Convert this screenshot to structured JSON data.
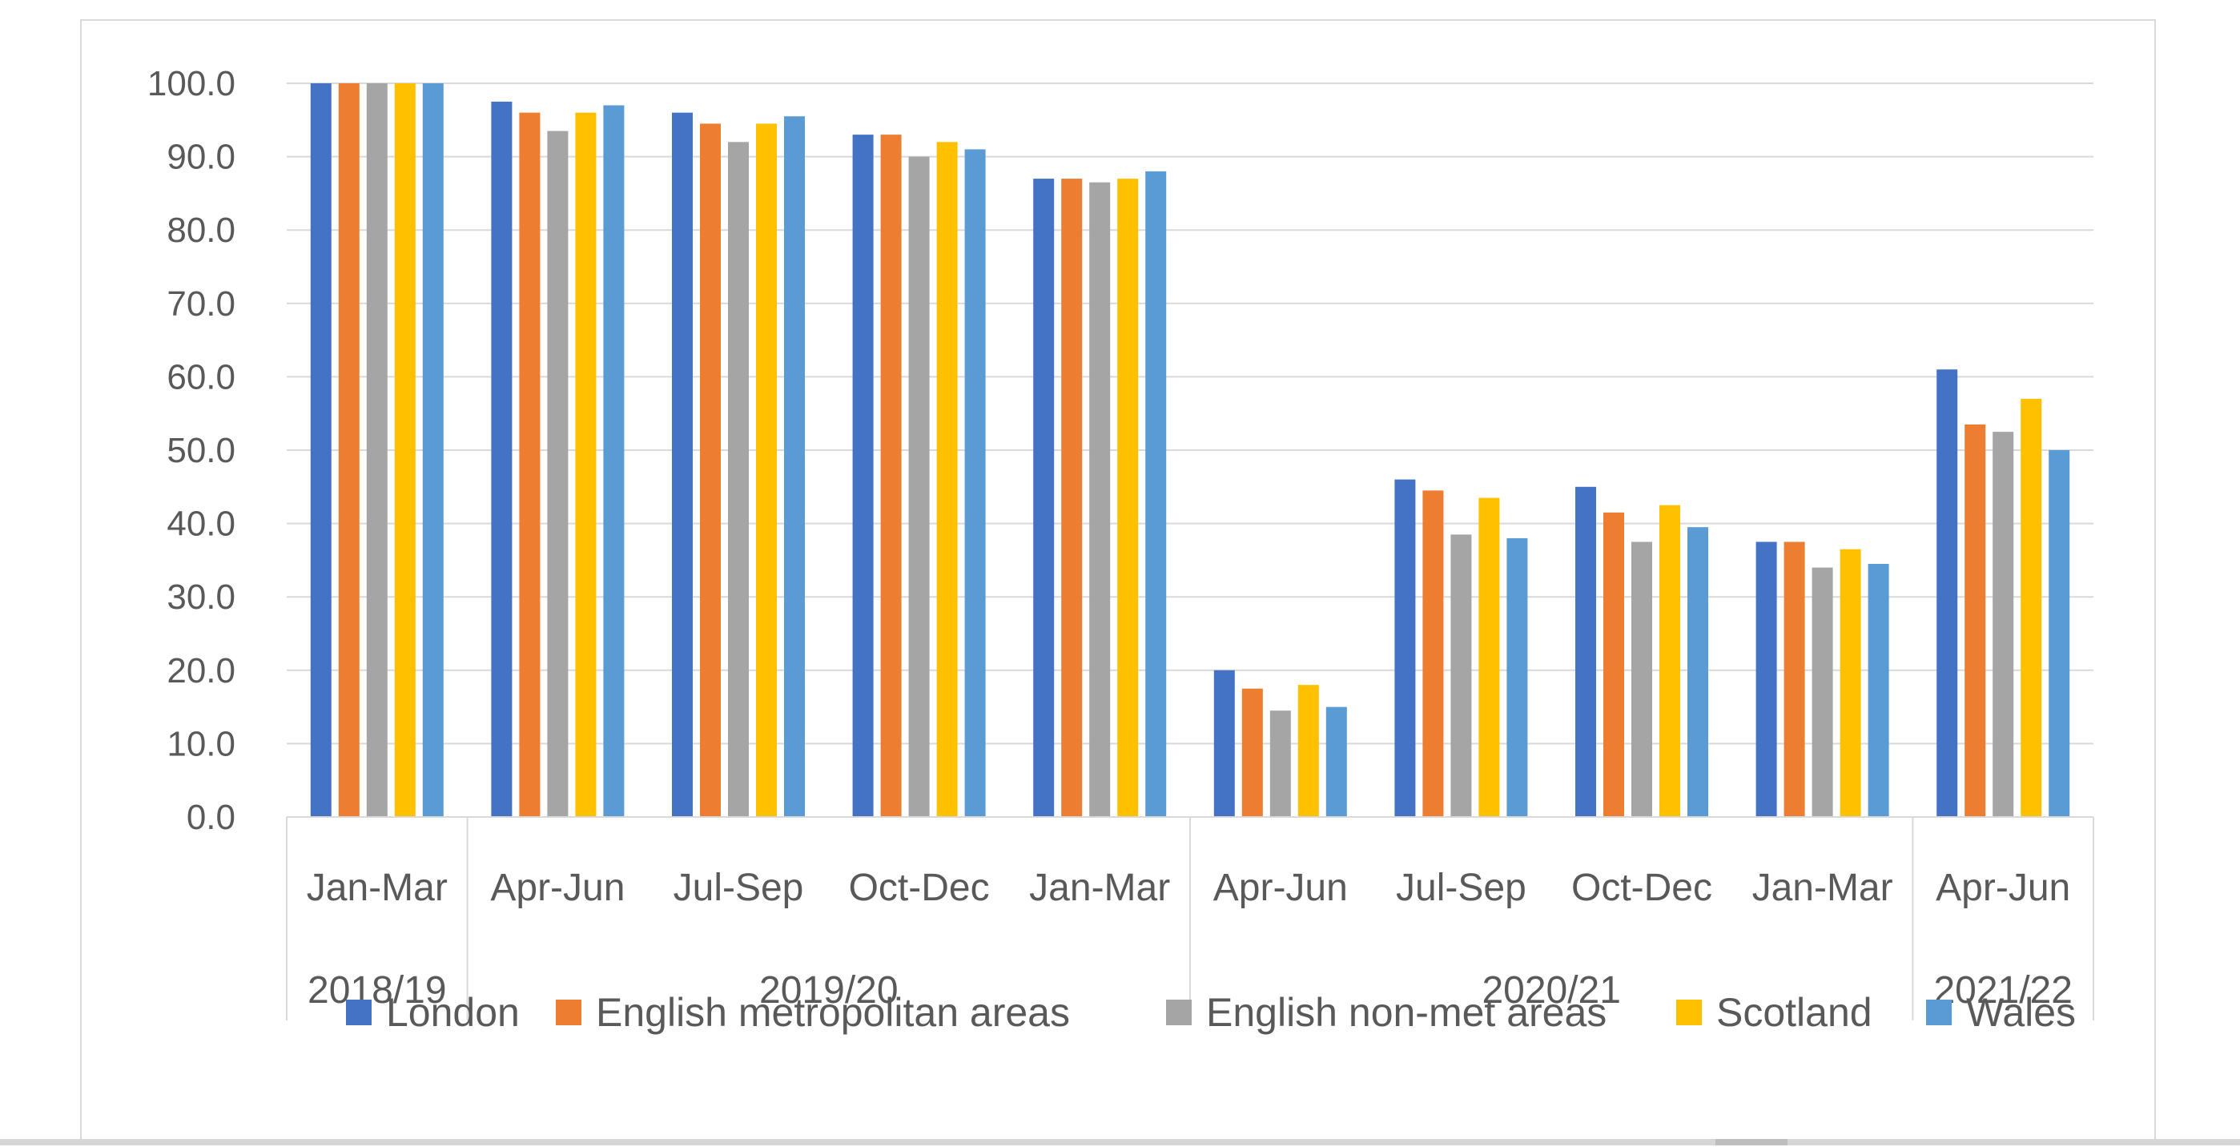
{
  "chart_data": {
    "type": "bar",
    "title": "",
    "xlabel": "",
    "ylabel": "",
    "ylim": [
      0,
      100
    ],
    "y_ticks": [
      "0.0",
      "10.0",
      "20.0",
      "30.0",
      "40.0",
      "50.0",
      "60.0",
      "70.0",
      "80.0",
      "90.0",
      "100.0"
    ],
    "categories": [
      "Jan-Mar",
      "Apr-Jun",
      "Jul-Sep",
      "Oct-Dec",
      "Jan-Mar",
      "Apr-Jun",
      "Jul-Sep",
      "Oct-Dec",
      "Jan-Mar",
      "Apr-Jun"
    ],
    "category_groups": [
      {
        "label": "2018/19",
        "count": 1
      },
      {
        "label": "2019/20",
        "count": 4
      },
      {
        "label": "2020/21",
        "count": 4
      },
      {
        "label": "2021/22",
        "count": 1
      }
    ],
    "series": [
      {
        "name": "London",
        "color": "#4472c4",
        "values": [
          100.0,
          97.5,
          96.0,
          93.0,
          87.0,
          20.0,
          46.0,
          45.0,
          37.5,
          61.0
        ]
      },
      {
        "name": "English metropolitan areas",
        "color": "#ed7d31",
        "values": [
          100.0,
          96.0,
          94.5,
          93.0,
          87.0,
          17.5,
          44.5,
          41.5,
          37.5,
          53.5
        ]
      },
      {
        "name": "English non-met areas",
        "color": "#a5a5a5",
        "values": [
          100.0,
          93.5,
          92.0,
          90.0,
          86.5,
          14.5,
          38.5,
          37.5,
          34.0,
          52.5
        ]
      },
      {
        "name": "Scotland",
        "color": "#ffc000",
        "values": [
          100.0,
          96.0,
          94.5,
          92.0,
          87.0,
          18.0,
          43.5,
          42.5,
          36.5,
          57.0
        ]
      },
      {
        "name": "Wales",
        "color": "#5b9bd5",
        "values": [
          100.0,
          97.0,
          95.5,
          91.0,
          88.0,
          15.0,
          38.0,
          39.5,
          34.5,
          50.0
        ]
      }
    ],
    "grid": true,
    "legend_position": "bottom"
  }
}
